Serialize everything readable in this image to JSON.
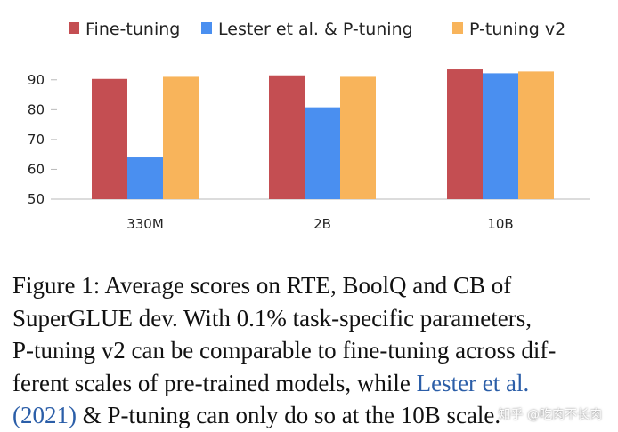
{
  "chart_data": {
    "type": "bar",
    "categories": [
      "330M",
      "2B",
      "10B"
    ],
    "series": [
      {
        "name": "Fine-tuning",
        "values": [
          90.3,
          91.5,
          93.5
        ],
        "color": "#c44e52"
      },
      {
        "name": "Lester et al. & P-tuning",
        "values": [
          64.0,
          80.8,
          92.2
        ],
        "color": "#4a8ff0"
      },
      {
        "name": "P-tuning v2",
        "values": [
          91.0,
          91.0,
          92.8
        ],
        "color": "#f8b45b"
      }
    ],
    "yticks": [
      50,
      60,
      70,
      80,
      90
    ],
    "ylim": [
      50,
      95
    ],
    "title": "",
    "xlabel": "",
    "ylabel": ""
  },
  "caption": {
    "line1": "Figure 1:  Average scores on RTE, BoolQ and CB of",
    "line2": "SuperGLUE dev.  With 0.1% task-specific parameters,",
    "line3": "P-tuning v2 can be comparable to fine-tuning across dif-",
    "line4_pre": "ferent scales of pre-trained models, while ",
    "line4_cite": "Lester et al.",
    "line5_cite": "(2021)",
    "line5_post": " & P-tuning can only do so at the 10B scale."
  },
  "watermark": "知乎 @吃肉不长肉"
}
